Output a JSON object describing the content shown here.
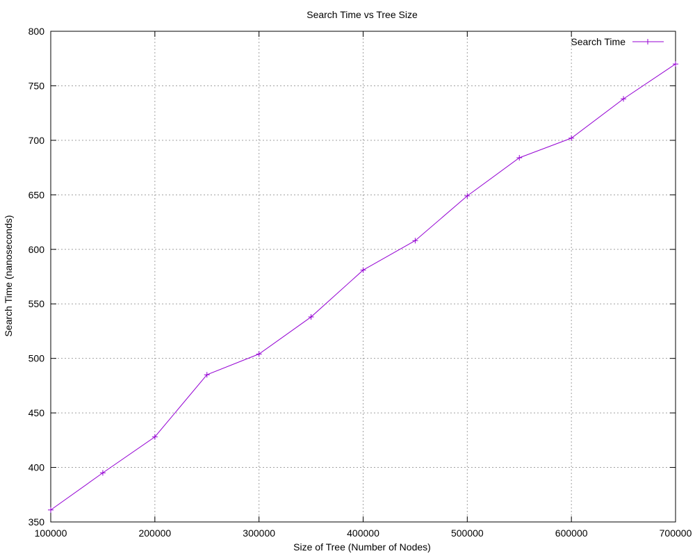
{
  "chart_data": {
    "type": "line",
    "title": "Search Time vs Tree Size",
    "xlabel": "Size of Tree (Number of Nodes)",
    "ylabel": "Search Time (nanoseconds)",
    "xlim": [
      100000,
      700000
    ],
    "ylim": [
      350,
      800
    ],
    "xticks": [
      100000,
      200000,
      300000,
      400000,
      500000,
      600000,
      700000
    ],
    "yticks": [
      350,
      400,
      450,
      500,
      550,
      600,
      650,
      700,
      750,
      800
    ],
    "grid": true,
    "legend_position": "top-right",
    "series": [
      {
        "name": "Search Time",
        "color": "#9400d3",
        "marker": "plus",
        "x": [
          100000,
          150000,
          200000,
          250000,
          300000,
          350000,
          400000,
          450000,
          500000,
          550000,
          600000,
          650000,
          700000
        ],
        "y": [
          361,
          395,
          428,
          485,
          504,
          538,
          581,
          608,
          649,
          684,
          702,
          738,
          770
        ]
      }
    ]
  }
}
